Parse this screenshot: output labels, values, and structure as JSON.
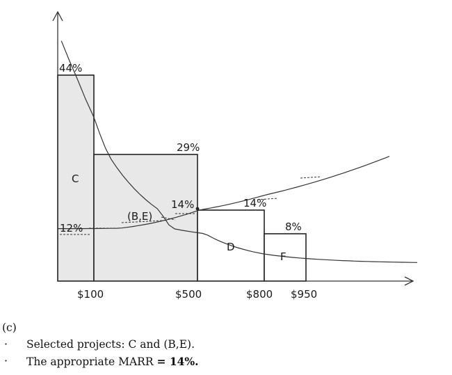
{
  "chart_data": {
    "type": "bar",
    "description": "Investment opportunity schedule (step bars) overlaid with a decreasing investment-demand curve and an increasing marginal cost-of-capital curve",
    "bars": [
      {
        "label": "C",
        "rate_label": "44%",
        "rate": 44,
        "budget_start": 0,
        "budget_end": 100,
        "fill": "#e8e8e8"
      },
      {
        "label": "",
        "rate_label": "29%",
        "rate": 29,
        "budget_start": 100,
        "budget_end": 500,
        "fill": "#e8e8e8"
      },
      {
        "label": "D",
        "rate_label": "14%",
        "rate": 14,
        "budget_start": 500,
        "budget_end": 800,
        "fill": "#ffffff"
      },
      {
        "label": "F",
        "rate_label": "8%",
        "rate": 8,
        "budget_start": 800,
        "budget_end": 950,
        "fill": "#ffffff"
      }
    ],
    "x_tick_labels": [
      "$100",
      "$500",
      "$800",
      "$950"
    ],
    "x_ticks": [
      100,
      500,
      800,
      950
    ],
    "annotations": {
      "be_label": "(B,E)",
      "intersection_rate_label": "14%",
      "intersection_budget": 500,
      "intersection_rate": 14,
      "base_rate_label": "12%",
      "base_rate": 12
    },
    "curves": {
      "decreasing": {
        "start_rate": 54,
        "end_rate": 3,
        "budget_end": 1350
      },
      "increasing": {
        "start_rate": 11.7,
        "end_rate": 28.5,
        "budget_end": 1250
      }
    }
  },
  "notes": {
    "part_label": "(c)",
    "bullet_symbol": "·",
    "line1": "Selected projects: C and (B,E).",
    "line2_text": "The appropriate MARR ",
    "line2_bold": "= 14%."
  }
}
